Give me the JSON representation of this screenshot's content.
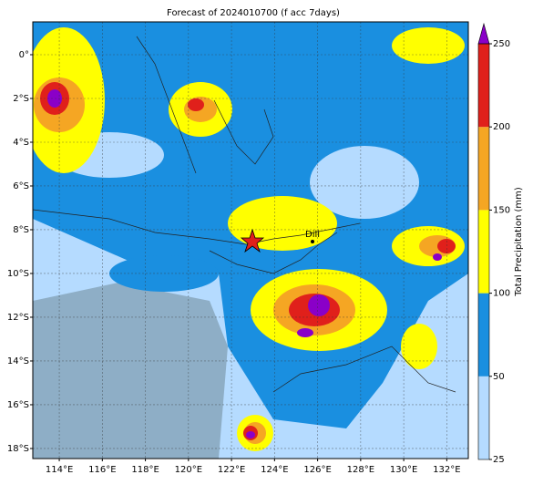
{
  "map": {
    "title": "Forecast of 2024010700 (f acc 7days)",
    "lonlim": [
      112.77,
      133.0
    ],
    "latlim": [
      -18.46,
      1.5
    ],
    "lonticks": [
      {
        "value": 114,
        "label": "114°E"
      },
      {
        "value": 116,
        "label": "116°E"
      },
      {
        "value": 118,
        "label": "118°E"
      },
      {
        "value": 120,
        "label": "120°E"
      },
      {
        "value": 122,
        "label": "122°E"
      },
      {
        "value": 124,
        "label": "124°E"
      },
      {
        "value": 126,
        "label": "126°E"
      },
      {
        "value": 128,
        "label": "128°E"
      },
      {
        "value": 130,
        "label": "130°E"
      },
      {
        "value": 132,
        "label": "132°E"
      }
    ],
    "latticks": [
      {
        "value": 0,
        "label": "0°"
      },
      {
        "value": -2,
        "label": "2°S"
      },
      {
        "value": -4,
        "label": "4°S"
      },
      {
        "value": -6,
        "label": "6°S"
      },
      {
        "value": -8,
        "label": "8°S"
      },
      {
        "value": -10,
        "label": "10°S"
      },
      {
        "value": -12,
        "label": "12°S"
      },
      {
        "value": -14,
        "label": "14°S"
      },
      {
        "value": -16,
        "label": "16°S"
      },
      {
        "value": -18,
        "label": "18°S"
      }
    ],
    "grid": true,
    "place_label": "Dili",
    "colorbar": {
      "label": "Total Precipitation (mm)",
      "ticks": [
        25,
        50,
        100,
        150,
        200,
        250
      ],
      "colors": [
        "#b5dbff",
        "#1a8fe0",
        "#ffff00",
        "#f5a623",
        "#e0201b"
      ],
      "over_color": "#8a00c8"
    }
  }
}
